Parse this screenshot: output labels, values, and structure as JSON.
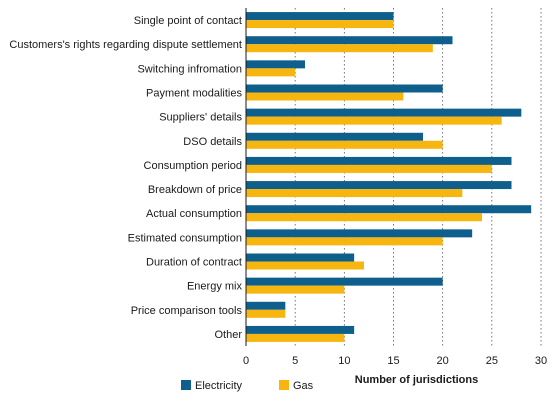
{
  "chart_data": {
    "type": "bar",
    "orientation": "horizontal",
    "categories": [
      "Single point of contact",
      "Customers's rights regarding dispute settlement",
      "Switching infromation",
      "Payment modalities",
      "Suppliers' details",
      "DSO details",
      "Consumption period",
      "Breakdown of price",
      "Actual consumption",
      "Estimated consumption",
      "Duration of contract",
      "Energy mix",
      "Price comparison tools",
      "Other"
    ],
    "series": [
      {
        "name": "Electricity",
        "color": "#0f5f8c",
        "values": [
          15,
          21,
          6,
          20,
          28,
          18,
          27,
          27,
          29,
          23,
          11,
          20,
          4,
          11
        ]
      },
      {
        "name": "Gas",
        "color": "#f7b50f",
        "values": [
          15,
          19,
          5,
          16,
          26,
          20,
          25,
          22,
          24,
          20,
          12,
          10,
          4,
          10
        ]
      }
    ],
    "xlabel": "Number of jurisdictions",
    "ylabel": "",
    "xlim": [
      0,
      30
    ],
    "xticks": [
      "0",
      "5",
      "10",
      "15",
      "20",
      "25",
      "30"
    ],
    "grid": "vertical dotted",
    "legend": "bottom-left"
  }
}
